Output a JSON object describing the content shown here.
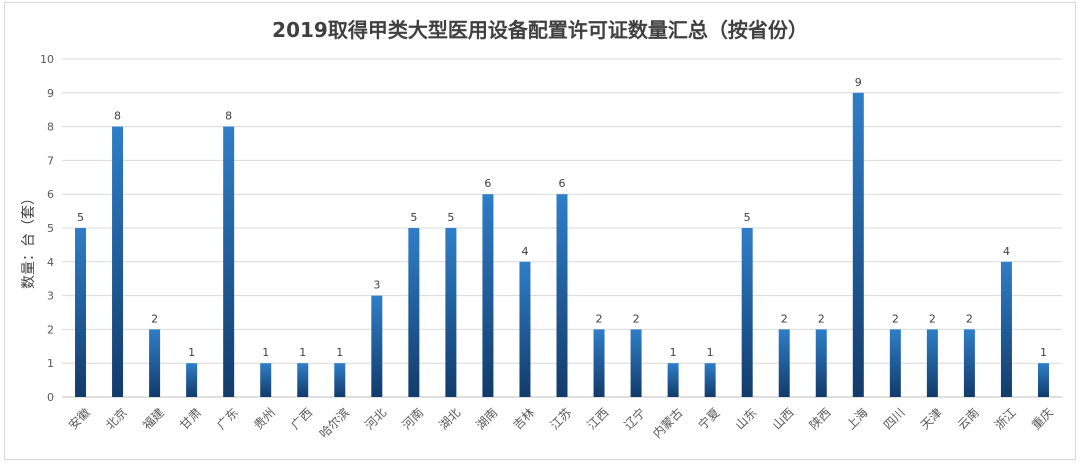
{
  "chart_data": {
    "type": "bar",
    "title": "2019取得甲类大型医用设备配置许可证数量汇总（按省份）",
    "xlabel": "",
    "ylabel": "数量：台（套）",
    "ylim": [
      0,
      10
    ],
    "yticks": [
      0,
      1,
      2,
      3,
      4,
      5,
      6,
      7,
      8,
      9,
      10
    ],
    "grid": true,
    "data_labels": true,
    "bar_color": "#2f7ec8",
    "bar_color_dark": "#123b6a",
    "categories": [
      "安徽",
      "北京",
      "福建",
      "甘肃",
      "广东",
      "贵州",
      "广西",
      "哈尔滨",
      "河北",
      "河南",
      "湖北",
      "湖南",
      "吉林",
      "江苏",
      "江西",
      "辽宁",
      "内蒙古",
      "宁夏",
      "山东",
      "山西",
      "陕西",
      "上海",
      "四川",
      "天津",
      "云南",
      "浙江",
      "重庆"
    ],
    "values": [
      5,
      8,
      2,
      1,
      8,
      1,
      1,
      1,
      3,
      5,
      5,
      6,
      4,
      6,
      2,
      2,
      1,
      1,
      5,
      2,
      2,
      9,
      2,
      2,
      2,
      4,
      1
    ]
  }
}
